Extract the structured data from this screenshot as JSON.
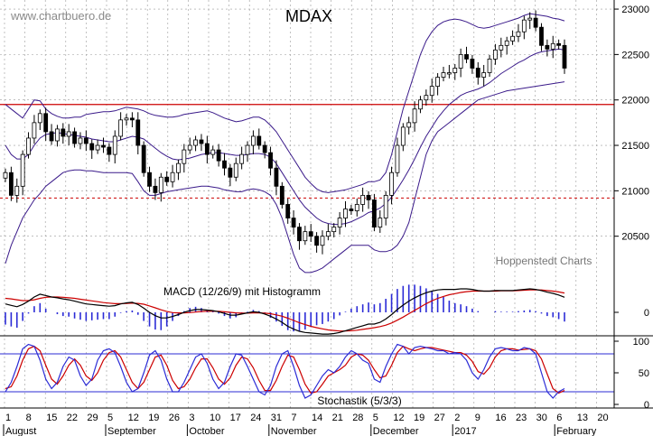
{
  "watermark": "www.chartbuero.de",
  "title": "MDAX",
  "credit": "Hoppenstedt Charts",
  "colors": {
    "candle_line": "#000000",
    "bollinger": "#3a1a8a",
    "horizontal_line": "#cc0000",
    "dashed_line": "#cc0000",
    "macd": "#000000",
    "macd_signal": "#cc0000",
    "histogram": "#2b2bd6",
    "stoch_k": "#2b2bd6",
    "stoch_d": "#cc0000",
    "stoch_levels": "#2b2bd6",
    "grid": "#9a9a9a"
  },
  "chart_data": [
    {
      "panel": "price",
      "type": "candlestick",
      "title": "MDAX",
      "ylim": [
        20000,
        23100
      ],
      "y_ticks": [
        "23000",
        "22500",
        "22000",
        "21500",
        "21000",
        "20500"
      ],
      "y_tick_values": [
        23000,
        22500,
        22000,
        21500,
        21000,
        20500
      ],
      "grid": true,
      "horizontal_line": 21950,
      "dashed_line": 20920,
      "close": [
        21200,
        20950,
        21050,
        21400,
        21580,
        21750,
        21850,
        21650,
        21550,
        21680,
        21600,
        21650,
        21520,
        21580,
        21520,
        21450,
        21500,
        21480,
        21400,
        21600,
        21780,
        21800,
        21780,
        21500,
        21200,
        21050,
        20980,
        21150,
        21100,
        21200,
        21300,
        21450,
        21500,
        21560,
        21520,
        21400,
        21450,
        21330,
        21250,
        21150,
        21300,
        21400,
        21500,
        21600,
        21500,
        21420,
        21250,
        21050,
        20850,
        20700,
        20600,
        20450,
        20550,
        20500,
        20400,
        20500,
        20550,
        20600,
        20700,
        20800,
        20780,
        20850,
        20950,
        20900,
        20600,
        20700,
        20950,
        21200,
        21500,
        21700,
        21750,
        21900,
        22000,
        22050,
        22150,
        22250,
        22300,
        22300,
        22350,
        22500,
        22450,
        22350,
        22250,
        22300,
        22450,
        22550,
        22600,
        22650,
        22700,
        22750,
        22880,
        22900,
        22800,
        22600,
        22560,
        22620,
        22600,
        22350
      ],
      "bollinger_upper": [
        21950,
        21900,
        21850,
        21800,
        21900,
        22000,
        21990,
        21900,
        21850,
        21820,
        21800,
        21800,
        21810,
        21810,
        21840,
        21850,
        21860,
        21870,
        21870,
        21880,
        21900,
        21920,
        21910,
        21900,
        21880,
        21850,
        21830,
        21820,
        21810,
        21810,
        21820,
        21840,
        21850,
        21860,
        21870,
        21880,
        21860,
        21830,
        21800,
        21780,
        21760,
        21770,
        21790,
        21810,
        21810,
        21780,
        21720,
        21650,
        21550,
        21450,
        21350,
        21250,
        21150,
        21080,
        21020,
        20990,
        20980,
        20990,
        21000,
        21010,
        21030,
        21050,
        21070,
        21100,
        21100,
        21120,
        21200,
        21400,
        21650,
        21900,
        22100,
        22300,
        22500,
        22650,
        22750,
        22820,
        22860,
        22880,
        22890,
        22880,
        22860,
        22830,
        22800,
        22790,
        22800,
        22820,
        22840,
        22860,
        22880,
        22900,
        22930,
        22950,
        22940,
        22930,
        22920,
        22900,
        22890,
        22870
      ],
      "bollinger_middle": [
        21500,
        21400,
        21350,
        21350,
        21400,
        21500,
        21580,
        21620,
        21630,
        21640,
        21630,
        21620,
        21610,
        21600,
        21590,
        21570,
        21560,
        21550,
        21540,
        21540,
        21560,
        21580,
        21600,
        21590,
        21570,
        21520,
        21470,
        21420,
        21380,
        21350,
        21340,
        21350,
        21360,
        21380,
        21400,
        21410,
        21420,
        21420,
        21410,
        21400,
        21390,
        21390,
        21400,
        21410,
        21410,
        21400,
        21370,
        21300,
        21200,
        21100,
        21000,
        20900,
        20820,
        20760,
        20700,
        20660,
        20640,
        20630,
        20630,
        20640,
        20660,
        20690,
        20720,
        20760,
        20780,
        20810,
        20860,
        20930,
        21020,
        21120,
        21230,
        21350,
        21480,
        21600,
        21700,
        21800,
        21880,
        21950,
        22000,
        22050,
        22080,
        22100,
        22120,
        22150,
        22190,
        22240,
        22290,
        22330,
        22370,
        22410,
        22440,
        22480,
        22510,
        22530,
        22540,
        22550,
        22560,
        22550
      ],
      "bollinger_lower": [
        20200,
        20400,
        20550,
        20700,
        20800,
        20900,
        20970,
        21050,
        21100,
        21150,
        21200,
        21220,
        21230,
        21230,
        21220,
        21220,
        21210,
        21200,
        21200,
        21200,
        21200,
        21200,
        21190,
        21100,
        21000,
        20950,
        20950,
        20970,
        20990,
        21000,
        21010,
        21020,
        21030,
        21040,
        21050,
        21050,
        21040,
        21030,
        21010,
        21000,
        20990,
        20990,
        21010,
        21020,
        21010,
        20990,
        20950,
        20850,
        20700,
        20500,
        20300,
        20150,
        20100,
        20100,
        20120,
        20150,
        20200,
        20250,
        20300,
        20350,
        20400,
        20400,
        20400,
        20400,
        20350,
        20330,
        20330,
        20350,
        20400,
        20500,
        20650,
        20900,
        21150,
        21400,
        21550,
        21650,
        21700,
        21750,
        21800,
        21850,
        21900,
        21950,
        22000,
        22020,
        22040,
        22060,
        22080,
        22100,
        22110,
        22120,
        22130,
        22140,
        22150,
        22160,
        22170,
        22180,
        22190,
        22200
      ]
    },
    {
      "panel": "macd",
      "type": "line",
      "title": "MACD (12/26/9) mit Histogramm",
      "y_ticks": [
        "0"
      ],
      "macd": [
        30,
        25,
        20,
        28,
        40,
        55,
        65,
        60,
        55,
        52,
        48,
        45,
        40,
        35,
        30,
        28,
        26,
        24,
        22,
        24,
        30,
        34,
        36,
        28,
        15,
        0,
        -12,
        -20,
        -20,
        -15,
        -8,
        0,
        6,
        10,
        10,
        8,
        6,
        2,
        -4,
        -10,
        -10,
        -6,
        -2,
        2,
        0,
        -6,
        -14,
        -24,
        -36,
        -50,
        -60,
        -68,
        -72,
        -74,
        -76,
        -78,
        -78,
        -76,
        -72,
        -66,
        -60,
        -54,
        -48,
        -42,
        -42,
        -36,
        -24,
        -8,
        10,
        26,
        40,
        52,
        62,
        70,
        76,
        80,
        82,
        82,
        82,
        84,
        84,
        82,
        78,
        76,
        76,
        78,
        78,
        78,
        78,
        80,
        82,
        84,
        82,
        78,
        72,
        68,
        62,
        54
      ],
      "signal": [
        50,
        48,
        45,
        42,
        42,
        45,
        50,
        54,
        55,
        55,
        54,
        52,
        50,
        47,
        44,
        41,
        38,
        35,
        33,
        31,
        31,
        32,
        33,
        32,
        29,
        23,
        16,
        9,
        3,
        -1,
        -2,
        -2,
        -1,
        1,
        3,
        4,
        4,
        4,
        2,
        0,
        -2,
        -3,
        -3,
        -2,
        -2,
        -3,
        -5,
        -9,
        -14,
        -21,
        -29,
        -37,
        -44,
        -50,
        -55,
        -59,
        -63,
        -65,
        -67,
        -67,
        -66,
        -64,
        -61,
        -58,
        -55,
        -51,
        -46,
        -38,
        -28,
        -17,
        -5,
        7,
        19,
        31,
        41,
        50,
        57,
        63,
        67,
        71,
        74,
        76,
        76,
        76,
        76,
        76,
        77,
        77,
        77,
        78,
        79,
        80,
        80,
        80,
        78,
        76,
        73,
        69
      ]
    },
    {
      "panel": "stochastic",
      "type": "line",
      "title": "Stochastik (5/3/3)",
      "ylim": [
        0,
        100
      ],
      "y_ticks": [
        "100",
        "50",
        "0"
      ],
      "y_tick_values": [
        100,
        50,
        0
      ],
      "levels": [
        80,
        20
      ],
      "k": [
        20,
        35,
        60,
        88,
        95,
        92,
        70,
        40,
        25,
        35,
        60,
        75,
        70,
        45,
        30,
        40,
        70,
        85,
        88,
        82,
        60,
        35,
        20,
        25,
        50,
        78,
        85,
        70,
        40,
        20,
        20,
        35,
        55,
        75,
        80,
        65,
        40,
        25,
        35,
        60,
        80,
        78,
        60,
        40,
        20,
        15,
        30,
        60,
        80,
        85,
        60,
        30,
        10,
        15,
        30,
        45,
        55,
        50,
        60,
        75,
        85,
        80,
        70,
        65,
        40,
        35,
        60,
        80,
        95,
        92,
        80,
        90,
        92,
        90,
        88,
        85,
        85,
        80,
        82,
        80,
        70,
        50,
        40,
        55,
        75,
        88,
        90,
        88,
        85,
        85,
        90,
        88,
        80,
        50,
        20,
        10,
        20,
        25
      ],
      "d": [
        25,
        28,
        45,
        70,
        88,
        92,
        85,
        62,
        40,
        32,
        45,
        62,
        72,
        62,
        45,
        38,
        50,
        70,
        82,
        85,
        75,
        55,
        35,
        25,
        35,
        55,
        75,
        78,
        62,
        38,
        25,
        28,
        40,
        58,
        72,
        72,
        58,
        40,
        32,
        42,
        62,
        75,
        72,
        58,
        38,
        22,
        22,
        38,
        60,
        78,
        75,
        55,
        32,
        18,
        20,
        32,
        45,
        50,
        55,
        62,
        75,
        80,
        78,
        70,
        55,
        42,
        45,
        62,
        82,
        92,
        88,
        85,
        88,
        90,
        90,
        88,
        86,
        84,
        82,
        82,
        78,
        68,
        52,
        48,
        58,
        75,
        85,
        88,
        88,
        86,
        87,
        88,
        85,
        72,
        48,
        25,
        18,
        22
      ]
    }
  ],
  "x_axis": {
    "day_labels": [
      "1",
      "8",
      "15",
      "22",
      "29",
      "5",
      "12",
      "19",
      "26",
      "3",
      "10",
      "17",
      "24",
      "31",
      "7",
      "14",
      "21",
      "28",
      "5",
      "12",
      "19",
      "27",
      "2",
      "9",
      "16",
      "23",
      "30",
      "6",
      "13",
      "20"
    ],
    "month_labels": [
      "August",
      "September",
      "October",
      "November",
      "December",
      "2017",
      "February"
    ]
  }
}
